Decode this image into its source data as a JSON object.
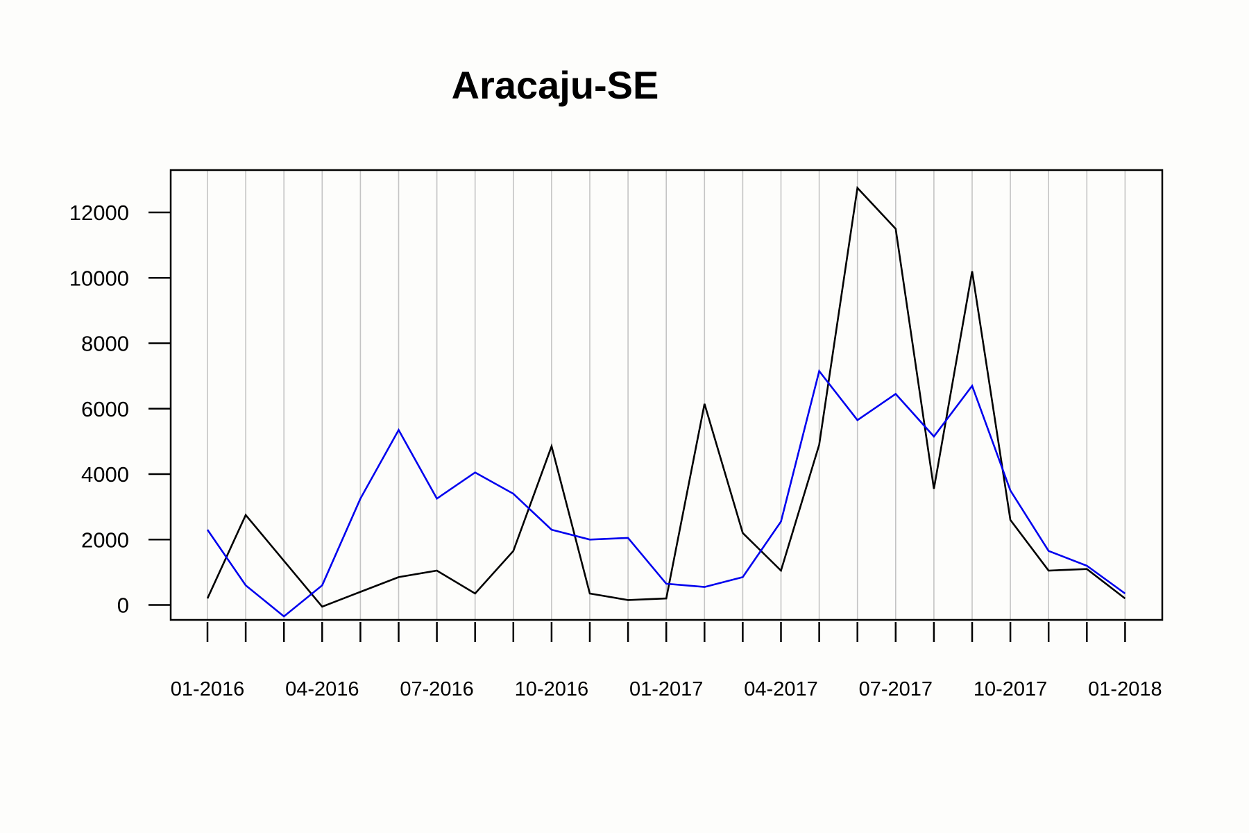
{
  "chart_data": {
    "type": "line",
    "title": "Aracaju-SE",
    "xlabel": "",
    "ylabel": "",
    "x": [
      "01-2016",
      "02-2016",
      "03-2016",
      "04-2016",
      "05-2016",
      "06-2016",
      "07-2016",
      "08-2016",
      "09-2016",
      "10-2016",
      "11-2016",
      "12-2016",
      "01-2017",
      "02-2017",
      "03-2017",
      "04-2017",
      "05-2017",
      "06-2017",
      "07-2017",
      "08-2017",
      "09-2017",
      "10-2017",
      "11-2017",
      "12-2017",
      "01-2018"
    ],
    "x_tick_labels": [
      "01-2016",
      "04-2016",
      "07-2016",
      "10-2016",
      "01-2017",
      "04-2017",
      "07-2017",
      "10-2017",
      "01-2018"
    ],
    "y_ticks": [
      0,
      2000,
      4000,
      6000,
      8000,
      10000,
      12000
    ],
    "ylim": [
      -500,
      13250
    ],
    "grid": "vertical",
    "legend": "none",
    "series": [
      {
        "color": "#000000",
        "values": [
          200,
          2750,
          1350,
          -50,
          400,
          850,
          1050,
          350,
          1650,
          4850,
          350,
          150,
          200,
          6150,
          2200,
          1050,
          4900,
          12750,
          11500,
          3550,
          10200,
          2600,
          1050,
          1100,
          200
        ]
      },
      {
        "color": "#0000ee",
        "values": [
          2300,
          600,
          -350,
          600,
          3250,
          5350,
          3250,
          4050,
          3400,
          2300,
          2000,
          2050,
          650,
          550,
          850,
          2550,
          7150,
          5650,
          6450,
          5150,
          6700,
          3500,
          1650,
          1200,
          350
        ]
      }
    ]
  }
}
